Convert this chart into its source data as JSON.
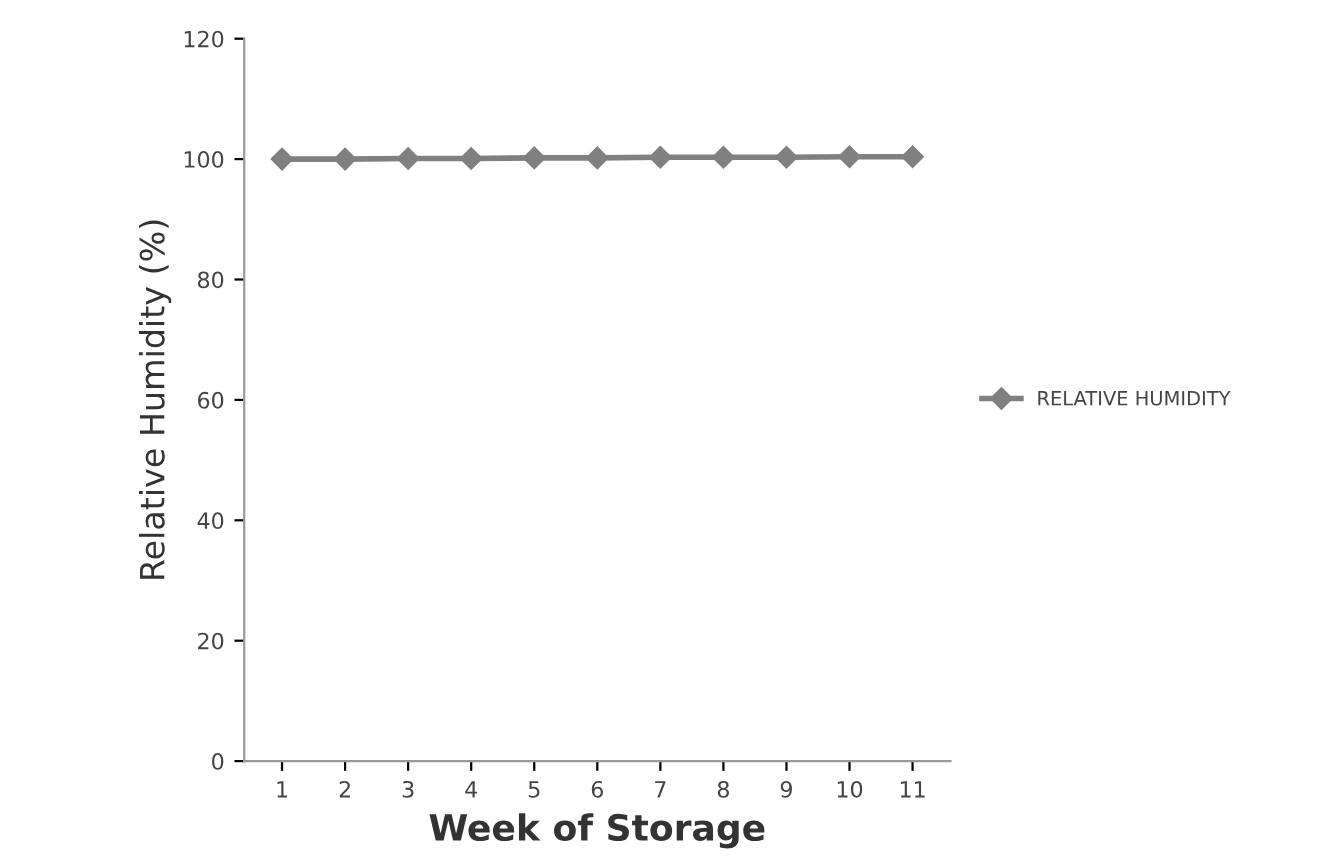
{
  "chart_data": {
    "type": "line",
    "xlabel": "Week of Storage",
    "ylabel": "Relative Humidity (%)",
    "categories": [
      "1",
      "2",
      "3",
      "4",
      "5",
      "6",
      "7",
      "8",
      "9",
      "10",
      "11"
    ],
    "series": [
      {
        "name": "RELATIVE HUMIDITY",
        "color": "#808080",
        "values": [
          100,
          100,
          100.1,
          100.1,
          100.2,
          100.2,
          100.3,
          100.3,
          100.3,
          100.4,
          100.4
        ]
      }
    ],
    "ylim": [
      0,
      120
    ],
    "yticks": [
      0,
      20,
      40,
      60,
      80,
      100,
      120
    ],
    "grid": false,
    "legend": "right",
    "marker": "diamond",
    "line_style": "solid"
  }
}
